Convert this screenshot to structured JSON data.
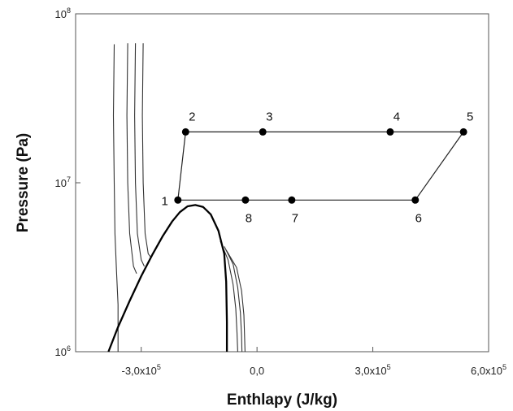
{
  "chart_data": {
    "type": "line",
    "title": "",
    "xlabel": "Enthlapy (J/kg)",
    "ylabel": "Pressure (Pa)",
    "x_scale": "linear",
    "y_scale": "log",
    "xlim": [
      -470000,
      600000
    ],
    "ylim": [
      1000000,
      100000000
    ],
    "grid": false,
    "legend": "none",
    "x_ticks": [
      {
        "value": -300000,
        "mantissa": "-3,0x10",
        "exp": "5"
      },
      {
        "value": 0,
        "mantissa": "0,0",
        "exp": ""
      },
      {
        "value": 300000,
        "mantissa": "3,0x10",
        "exp": "5"
      },
      {
        "value": 600000,
        "mantissa": "6,0x10",
        "exp": "5"
      }
    ],
    "y_ticks": [
      {
        "value": 1000000,
        "mantissa": "10",
        "exp": "6"
      },
      {
        "value": 10000000,
        "mantissa": "10",
        "exp": "7"
      },
      {
        "value": 100000000,
        "mantissa": "10",
        "exp": "8"
      }
    ],
    "cycle": {
      "points": [
        {
          "label": "1",
          "x": -205000,
          "p": 7900000
        },
        {
          "label": "2",
          "x": -185000,
          "p": 20000000
        },
        {
          "label": "3",
          "x": 15000,
          "p": 20000000
        },
        {
          "label": "4",
          "x": 345000,
          "p": 20000000
        },
        {
          "label": "5",
          "x": 535000,
          "p": 20000000
        },
        {
          "label": "6",
          "x": 410000,
          "p": 7900000
        },
        {
          "label": "7",
          "x": 90000,
          "p": 7900000
        },
        {
          "label": "8",
          "x": -30000,
          "p": 7900000
        }
      ],
      "path_order": [
        "1",
        "2",
        "3",
        "4",
        "5",
        "6",
        "7",
        "8",
        "1"
      ]
    },
    "saturation_dome": {
      "x": [
        -385000,
        -360000,
        -330000,
        -300000,
        -270000,
        -245000,
        -220000,
        -200000,
        -180000,
        -160000,
        -140000,
        -120000,
        -100000,
        -85000,
        -80000,
        -78000,
        -78000
      ],
      "p": [
        1000000,
        1400000,
        2000000,
        2800000,
        3800000,
        4800000,
        5900000,
        6700000,
        7250000,
        7380000,
        7200000,
        6500000,
        5200000,
        3800000,
        2600000,
        1500000,
        1000000
      ]
    },
    "isotherms": [
      {
        "x": [
          -370000,
          -372000,
          -370000,
          -368000,
          -364000,
          -360000,
          -360000
        ],
        "p": [
          66000000,
          25000000,
          10000000,
          5000000,
          3000000,
          1900000,
          1000000
        ]
      },
      {
        "x": [
          -335000,
          -337000,
          -335000,
          -330000,
          -320000,
          -312000
        ],
        "p": [
          67000000,
          25000000,
          10000000,
          5000000,
          3200000,
          2900000
        ]
      },
      {
        "x": [
          -315000,
          -317000,
          -315000,
          -310000,
          -300000,
          -292000
        ],
        "p": [
          67000000,
          25000000,
          10000000,
          5000000,
          3500000,
          3200000
        ]
      },
      {
        "x": [
          -295000,
          -297000,
          -295000,
          -290000,
          -282000,
          -274000
        ],
        "p": [
          67000000,
          25000000,
          10000000,
          5000000,
          3800000,
          3600000
        ]
      },
      {
        "x": [
          -95000,
          -75000,
          -62000,
          -55000,
          -52000,
          -50000
        ],
        "p": [
          4500000,
          3500000,
          2500000,
          1800000,
          1300000,
          1000000
        ]
      },
      {
        "x": [
          -85000,
          -62000,
          -50000,
          -43000,
          -40000,
          -39000
        ],
        "p": [
          4200000,
          3300000,
          2400000,
          1700000,
          1250000,
          1000000
        ]
      },
      {
        "x": [
          -80000,
          -53000,
          -40000,
          -34000,
          -32000,
          -31000
        ],
        "p": [
          4000000,
          3150000,
          2300000,
          1650000,
          1200000,
          1000000
        ]
      }
    ]
  }
}
